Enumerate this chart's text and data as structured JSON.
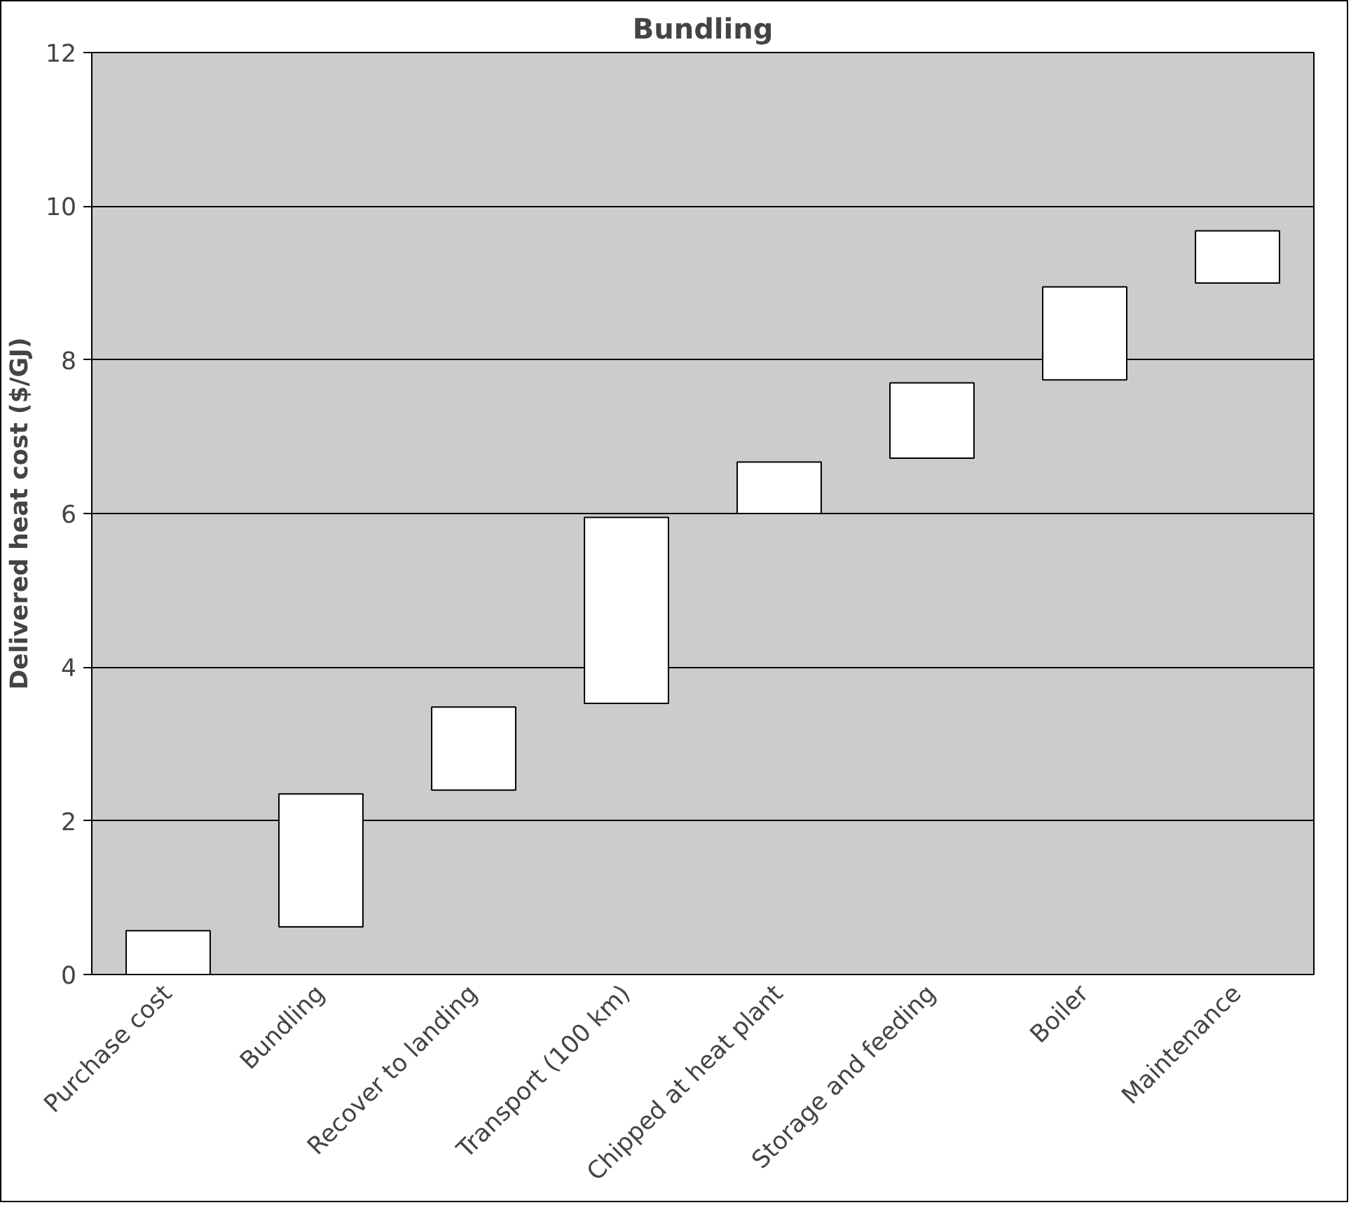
{
  "chart_data": {
    "type": "bar",
    "title": "Bundling",
    "ylabel": "Delivered heat cost ($/GJ)",
    "categories": [
      "Purchase cost",
      "Bundling",
      "Recover to landing",
      "Transport (100 km)",
      "Chipped at heat plant",
      "Storage and feeding",
      "Boiler",
      "Maintenance"
    ],
    "base": [
      0,
      0.62,
      2.4,
      3.53,
      6.0,
      6.72,
      7.74,
      9.0
    ],
    "values": [
      0.57,
      1.73,
      1.08,
      2.42,
      0.67,
      0.98,
      1.21,
      0.68
    ],
    "color": "#ffffff",
    "ylim": [
      0,
      12
    ],
    "yticks": [
      0,
      2,
      4,
      6,
      8,
      10,
      12
    ],
    "grid": "y"
  }
}
